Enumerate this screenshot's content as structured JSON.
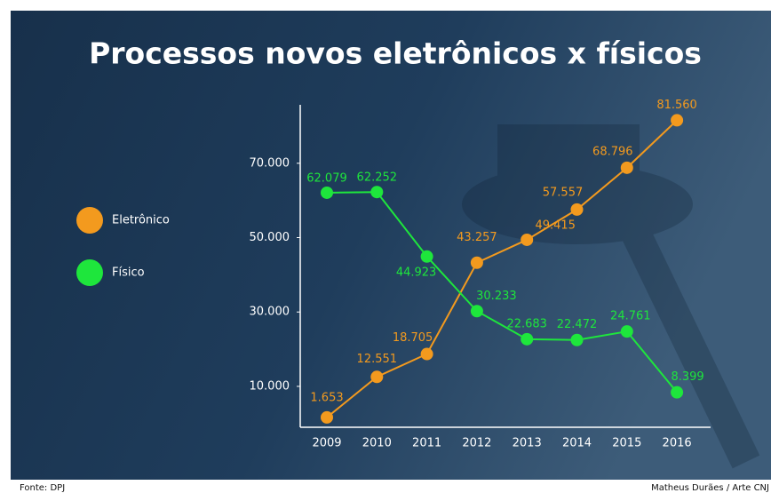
{
  "chart_data": {
    "type": "line",
    "title": "Processos novos eletrônicos x físicos",
    "categories": [
      "2009",
      "2010",
      "2011",
      "2012",
      "2013",
      "2014",
      "2015",
      "2016"
    ],
    "series": [
      {
        "name": "Eletrônico",
        "color": "#f39a1e",
        "values": [
          1653,
          12551,
          18705,
          43257,
          49415,
          57557,
          68796,
          81560
        ],
        "value_labels": [
          "1.653",
          "12.551",
          "18.705",
          "43.257",
          "49.415",
          "57.557",
          "68.796",
          "81.560"
        ]
      },
      {
        "name": "Físico",
        "color": "#1ee63c",
        "values": [
          62079,
          62252,
          44923,
          30233,
          22683,
          22472,
          24761,
          8399
        ],
        "value_labels": [
          "62.079",
          "62.252",
          "44.923",
          "30.233",
          "22.683",
          "22.472",
          "24.761",
          "8.399"
        ]
      }
    ],
    "ylim": [
      -1000,
      85000
    ],
    "yticks": [
      {
        "value": 10000,
        "label": "10.000"
      },
      {
        "value": 30000,
        "label": "30.000"
      },
      {
        "value": 50000,
        "label": "50.000"
      },
      {
        "value": 70000,
        "label": "70.000"
      }
    ],
    "legend": "left",
    "source": "Fonte: DPJ",
    "credit": "Matheus Durães / Arte CNJ"
  }
}
